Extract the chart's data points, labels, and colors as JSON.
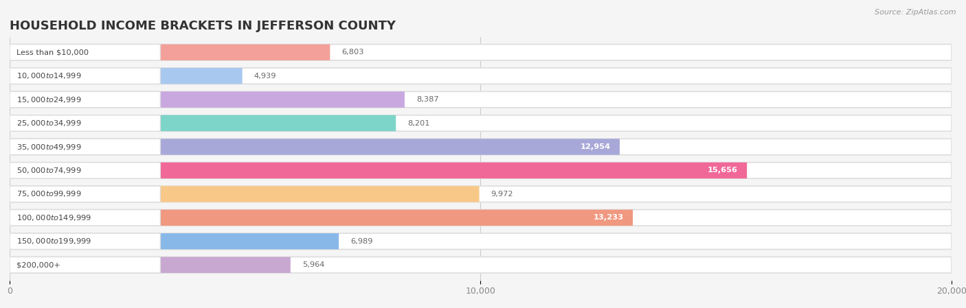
{
  "title": "HOUSEHOLD INCOME BRACKETS IN JEFFERSON COUNTY",
  "source": "Source: ZipAtlas.com",
  "categories": [
    "Less than $10,000",
    "$10,000 to $14,999",
    "$15,000 to $24,999",
    "$25,000 to $34,999",
    "$35,000 to $49,999",
    "$50,000 to $74,999",
    "$75,000 to $99,999",
    "$100,000 to $149,999",
    "$150,000 to $199,999",
    "$200,000+"
  ],
  "values": [
    6803,
    4939,
    8387,
    8201,
    12954,
    15656,
    9972,
    13233,
    6989,
    5964
  ],
  "bar_colors": [
    "#F4A09A",
    "#A8C8F0",
    "#C9A8E0",
    "#7DD4C8",
    "#A8A8D8",
    "#F06898",
    "#F8C888",
    "#F09880",
    "#88B8E8",
    "#C8A8D0"
  ],
  "xlim": [
    0,
    20000
  ],
  "xticks": [
    0,
    10000,
    20000
  ],
  "xticklabels": [
    "0",
    "10,000",
    "20,000"
  ],
  "background_color": "#f5f5f5",
  "title_fontsize": 13,
  "value_inside_threshold": 12000
}
